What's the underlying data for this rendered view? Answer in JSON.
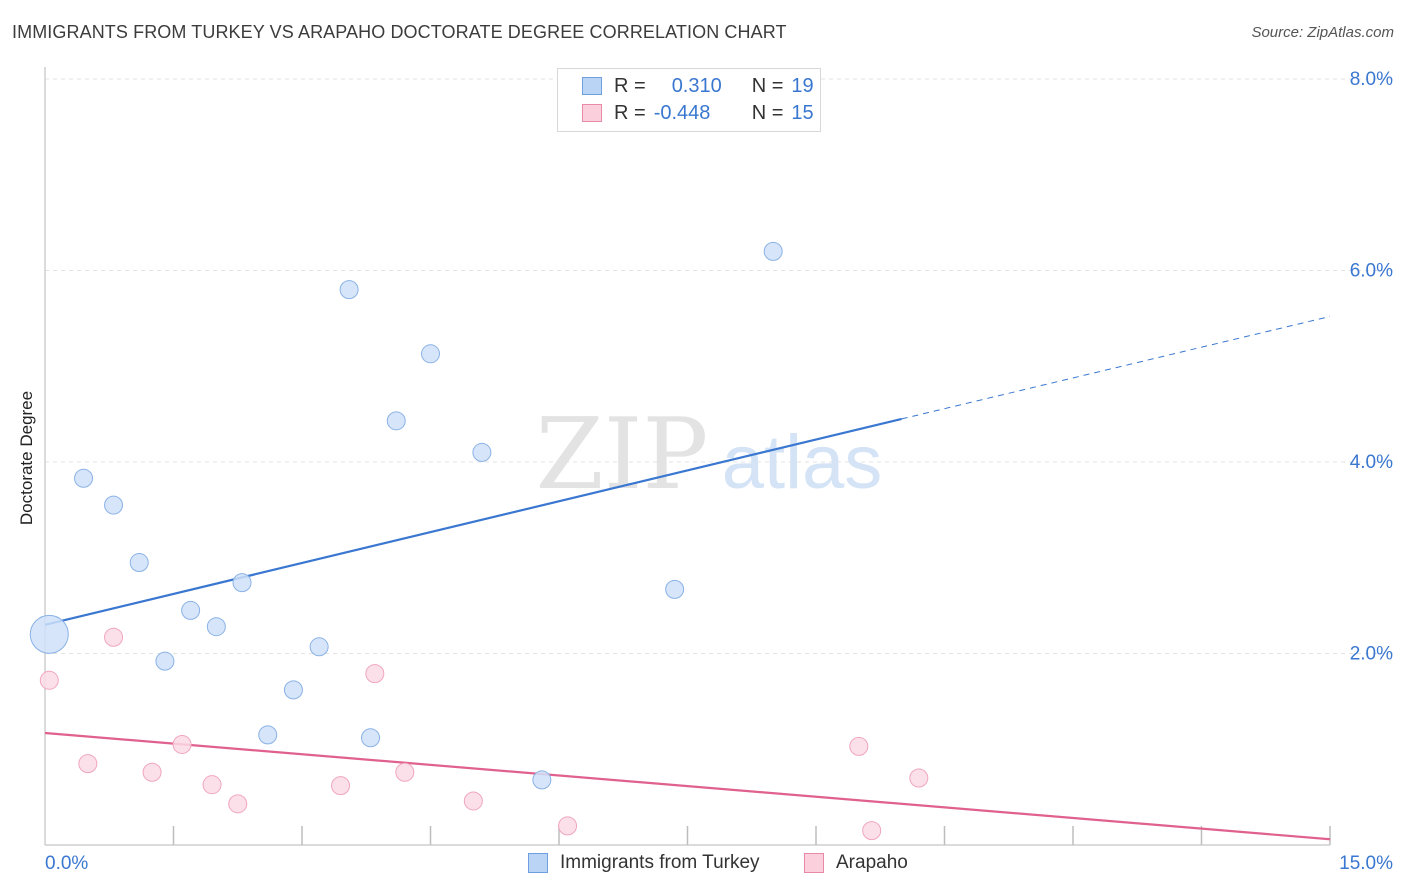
{
  "title": "IMMIGRANTS FROM TURKEY VS ARAPAHO DOCTORATE DEGREE CORRELATION CHART",
  "source": "Source: ZipAtlas.com",
  "watermark": {
    "zip": "ZIP",
    "atlas": "atlas"
  },
  "legend_top": {
    "rows": [
      {
        "r_label": "R =",
        "r_value": "0.310",
        "n_label": "N =",
        "n_value": "19",
        "fill": "#b9d4f5",
        "stroke": "#6e9fe0"
      },
      {
        "r_label": "R =",
        "r_value": "-0.448",
        "n_label": "N =",
        "n_value": "15",
        "fill": "#fbd0dc",
        "stroke": "#e889a5"
      }
    ]
  },
  "colors": {
    "blue": "#3a77d0",
    "blue_fill": "#cfe1f8",
    "blue_stroke": "#8ab2e6",
    "pink": "#e0608e",
    "pink_fill": "#fbdbe5",
    "pink_stroke": "#f0a6bd",
    "grid": "#e3e3e3",
    "tick_label": "#3a77d0"
  },
  "chart_data": {
    "type": "scatter",
    "title": "IMMIGRANTS FROM TURKEY VS ARAPAHO DOCTORATE DEGREE CORRELATION CHART",
    "xlabel": "",
    "ylabel": "Doctorate Degree",
    "xlim": [
      0,
      15
    ],
    "ylim": [
      0,
      8
    ],
    "x_tick_labels": [
      "0.0%",
      "15.0%"
    ],
    "y_ticks": [
      2,
      4,
      6,
      8
    ],
    "y_tick_labels": [
      "2.0%",
      "4.0%",
      "6.0%",
      "8.0%"
    ],
    "grid": true,
    "legend_position": "bottom",
    "series": [
      {
        "name": "Immigrants from Turkey",
        "color": "#3a77d0",
        "points": [
          {
            "x": 0.05,
            "y": 2.2,
            "big": true
          },
          {
            "x": 0.45,
            "y": 3.83
          },
          {
            "x": 0.8,
            "y": 3.55
          },
          {
            "x": 1.1,
            "y": 2.95
          },
          {
            "x": 1.7,
            "y": 2.45
          },
          {
            "x": 2.0,
            "y": 2.28
          },
          {
            "x": 2.3,
            "y": 2.74
          },
          {
            "x": 1.4,
            "y": 1.92
          },
          {
            "x": 2.9,
            "y": 1.62
          },
          {
            "x": 3.2,
            "y": 2.07
          },
          {
            "x": 2.6,
            "y": 1.15
          },
          {
            "x": 3.8,
            "y": 1.12
          },
          {
            "x": 3.55,
            "y": 5.8
          },
          {
            "x": 4.1,
            "y": 4.43
          },
          {
            "x": 4.5,
            "y": 5.13
          },
          {
            "x": 5.1,
            "y": 4.1
          },
          {
            "x": 5.8,
            "y": 0.68
          },
          {
            "x": 7.35,
            "y": 2.67
          },
          {
            "x": 8.5,
            "y": 6.2
          }
        ],
        "trend": {
          "x0": 0,
          "y0": 2.3,
          "x1": 10.0,
          "y1": 4.45,
          "x_dash_end": 15.0,
          "y_dash_end": 5.52
        }
      },
      {
        "name": "Arapaho",
        "color": "#e0608e",
        "points": [
          {
            "x": 0.05,
            "y": 1.72
          },
          {
            "x": 0.5,
            "y": 0.85
          },
          {
            "x": 0.8,
            "y": 2.17
          },
          {
            "x": 1.25,
            "y": 0.76
          },
          {
            "x": 1.6,
            "y": 1.05
          },
          {
            "x": 1.95,
            "y": 0.63
          },
          {
            "x": 2.25,
            "y": 0.43
          },
          {
            "x": 3.45,
            "y": 0.62
          },
          {
            "x": 3.85,
            "y": 1.79
          },
          {
            "x": 4.2,
            "y": 0.76
          },
          {
            "x": 5.0,
            "y": 0.46
          },
          {
            "x": 6.1,
            "y": 0.2
          },
          {
            "x": 9.5,
            "y": 1.03
          },
          {
            "x": 9.65,
            "y": 0.15
          },
          {
            "x": 10.2,
            "y": 0.7
          }
        ],
        "trend": {
          "x0": 0,
          "y0": 1.17,
          "x1": 15.0,
          "y1": 0.06
        }
      }
    ]
  }
}
